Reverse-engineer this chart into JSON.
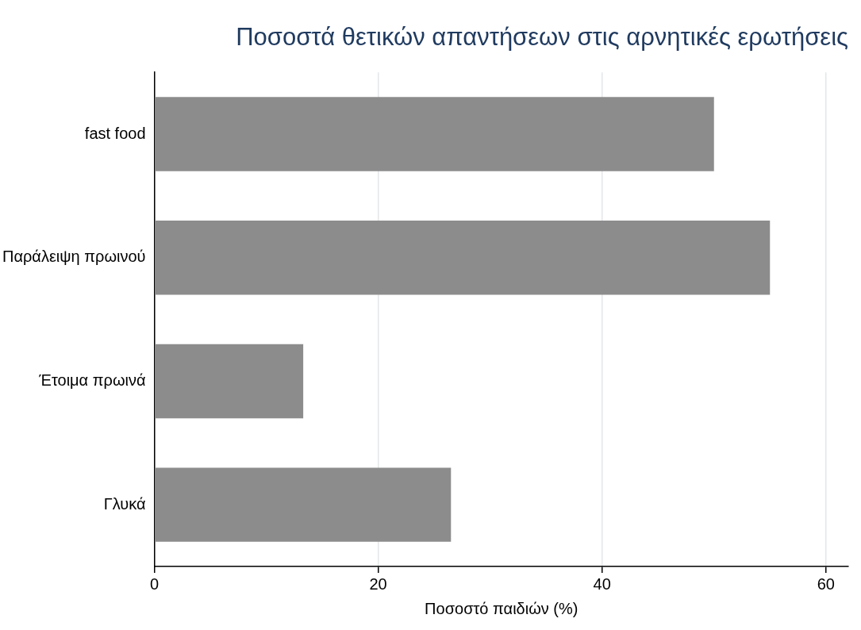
{
  "chart_data": {
    "type": "bar",
    "orientation": "horizontal",
    "title": "Ποσοστά θετικών απαντήσεων στις αρνητικές ερωτήσεις",
    "xlabel": "Ποσοστό παιδιών (%)",
    "categories": [
      "fast food",
      "Παράλειψη πρωινού",
      "Έτοιμα πρωινά",
      "Γλυκά"
    ],
    "values": [
      50,
      55,
      13.3,
      26.5
    ],
    "color": "#8c8c8c",
    "xlim": [
      0,
      62
    ],
    "xticks": [
      0,
      20,
      40,
      60
    ],
    "grid": "x",
    "legend": false
  }
}
